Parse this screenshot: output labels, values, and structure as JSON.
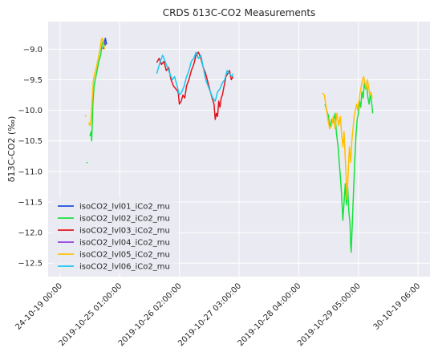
{
  "chart_data": {
    "type": "line",
    "title": "CRDS δ13C-CO2 Measurements",
    "xlabel": "",
    "ylabel": "δ13C-CO2 (‰)",
    "ylim": [
      -12.72,
      -8.55
    ],
    "xlim": [
      -0.2,
      6.2
    ],
    "grid": true,
    "legend_position": "lower-left",
    "y_ticks": [
      -9.0,
      -9.5,
      -10.0,
      -10.5,
      -11.0,
      -11.5,
      -12.0,
      -12.5
    ],
    "y_tick_labels": [
      "−9.0",
      "−9.5",
      "−10.0",
      "−10.5",
      "−11.0",
      "−11.5",
      "−12.0",
      "−12.5"
    ],
    "x_ticks": [
      0,
      1,
      2,
      3,
      4,
      5,
      6
    ],
    "x_tick_labels": [
      "24-10-19 00:00",
      "2019-10-25 01:00:00",
      "2019-10-26 02:00:00",
      "2019-10-27 03:00:00",
      "2019-10-28 04:00:00",
      "2019-10-29 05:00:00",
      "30-10-19 06:00"
    ],
    "series": [
      {
        "name": "isoCO2_lvl01_iCo2_mu",
        "color": "#1f4fd8",
        "segments": [
          [
            [
              0.72,
              -9.0
            ],
            [
              0.74,
              -8.9
            ],
            [
              0.76,
              -8.82
            ],
            [
              0.78,
              -8.92
            ]
          ]
        ]
      },
      {
        "name": "isoCO2_lvl02_iCo2_mu",
        "color": "#17e33c",
        "segments": [
          [
            [
              0.44,
              -10.85
            ],
            [
              0.46,
              -10.86
            ]
          ],
          [
            [
              0.5,
              -10.42
            ],
            [
              0.52,
              -10.35
            ],
            [
              0.53,
              -10.5
            ],
            [
              0.55,
              -9.9
            ],
            [
              0.57,
              -9.6
            ],
            [
              0.6,
              -9.45
            ],
            [
              0.62,
              -9.35
            ],
            [
              0.65,
              -9.2
            ],
            [
              0.68,
              -9.1
            ],
            [
              0.7,
              -8.95
            ],
            [
              0.72,
              -8.85
            ],
            [
              0.74,
              -8.9
            ],
            [
              0.76,
              -8.95
            ]
          ],
          [
            [
              4.44,
              -9.9
            ],
            [
              4.47,
              -10.0
            ],
            [
              4.5,
              -10.1
            ],
            [
              4.52,
              -10.3
            ],
            [
              4.55,
              -10.15
            ],
            [
              4.58,
              -10.2
            ],
            [
              4.61,
              -10.05
            ],
            [
              4.63,
              -10.35
            ],
            [
              4.66,
              -10.6
            ],
            [
              4.68,
              -10.85
            ],
            [
              4.7,
              -11.1
            ],
            [
              4.72,
              -11.4
            ],
            [
              4.74,
              -11.8
            ],
            [
              4.76,
              -11.5
            ],
            [
              4.78,
              -11.2
            ],
            [
              4.8,
              -11.55
            ],
            [
              4.82,
              -11.25
            ],
            [
              4.84,
              -11.65
            ],
            [
              4.86,
              -11.85
            ],
            [
              4.87,
              -12.2
            ],
            [
              4.88,
              -12.32
            ],
            [
              4.9,
              -11.8
            ],
            [
              4.92,
              -11.3
            ],
            [
              4.94,
              -10.8
            ],
            [
              4.96,
              -10.4
            ],
            [
              4.98,
              -10.15
            ],
            [
              5.0,
              -10.05
            ],
            [
              5.02,
              -9.85
            ],
            [
              5.04,
              -9.95
            ],
            [
              5.06,
              -9.7
            ],
            [
              5.08,
              -9.8
            ],
            [
              5.1,
              -9.55
            ],
            [
              5.12,
              -9.65
            ],
            [
              5.14,
              -9.6
            ],
            [
              5.16,
              -9.8
            ],
            [
              5.18,
              -9.9
            ],
            [
              5.2,
              -9.75
            ],
            [
              5.22,
              -9.85
            ],
            [
              5.24,
              -10.05
            ]
          ]
        ]
      },
      {
        "name": "isoCO2_lvl03_iCo2_mu",
        "color": "#e3121b",
        "segments": [
          [
            [
              1.62,
              -9.22
            ],
            [
              1.66,
              -9.15
            ],
            [
              1.7,
              -9.25
            ],
            [
              1.74,
              -9.2
            ],
            [
              1.78,
              -9.35
            ],
            [
              1.82,
              -9.3
            ],
            [
              1.86,
              -9.5
            ],
            [
              1.9,
              -9.6
            ],
            [
              1.94,
              -9.65
            ],
            [
              1.98,
              -9.7
            ],
            [
              2.0,
              -9.9
            ],
            [
              2.03,
              -9.85
            ],
            [
              2.06,
              -9.75
            ],
            [
              2.09,
              -9.8
            ],
            [
              2.12,
              -9.6
            ],
            [
              2.16,
              -9.5
            ],
            [
              2.2,
              -9.35
            ],
            [
              2.24,
              -9.25
            ],
            [
              2.28,
              -9.1
            ],
            [
              2.32,
              -9.05
            ],
            [
              2.36,
              -9.15
            ],
            [
              2.4,
              -9.3
            ],
            [
              2.44,
              -9.4
            ],
            [
              2.48,
              -9.55
            ],
            [
              2.52,
              -9.7
            ],
            [
              2.55,
              -9.8
            ],
            [
              2.58,
              -9.9
            ],
            [
              2.6,
              -10.15
            ],
            [
              2.62,
              -10.05
            ],
            [
              2.64,
              -10.1
            ],
            [
              2.66,
              -9.85
            ],
            [
              2.68,
              -9.95
            ],
            [
              2.7,
              -9.8
            ],
            [
              2.72,
              -9.75
            ],
            [
              2.75,
              -9.6
            ],
            [
              2.78,
              -9.45
            ],
            [
              2.81,
              -9.4
            ],
            [
              2.84,
              -9.35
            ],
            [
              2.87,
              -9.5
            ],
            [
              2.9,
              -9.45
            ]
          ]
        ]
      },
      {
        "name": "isoCO2_lvl04_iCo2_mu",
        "color": "#8e3fe0",
        "segments": [
          [
            [
              0.73,
              -8.95
            ],
            [
              0.75,
              -8.88
            ],
            [
              0.77,
              -8.93
            ]
          ]
        ]
      },
      {
        "name": "isoCO2_lvl05_iCo2_mu",
        "color": "#ffc000",
        "segments": [
          [
            [
              0.42,
              -10.08
            ],
            [
              0.44,
              -10.1
            ]
          ],
          [
            [
              0.48,
              -10.2
            ],
            [
              0.5,
              -10.25
            ],
            [
              0.52,
              -10.15
            ],
            [
              0.54,
              -9.8
            ],
            [
              0.56,
              -9.5
            ],
            [
              0.58,
              -9.4
            ],
            [
              0.61,
              -9.3
            ],
            [
              0.64,
              -9.15
            ],
            [
              0.67,
              -9.0
            ],
            [
              0.69,
              -8.85
            ],
            [
              0.71,
              -8.82
            ],
            [
              0.73,
              -8.95
            ],
            [
              0.75,
              -9.0
            ]
          ],
          [
            [
              4.4,
              -9.72
            ],
            [
              4.43,
              -9.75
            ],
            [
              4.46,
              -9.95
            ],
            [
              4.49,
              -10.15
            ],
            [
              4.52,
              -10.3
            ],
            [
              4.55,
              -10.25
            ],
            [
              4.58,
              -10.1
            ],
            [
              4.61,
              -10.3
            ],
            [
              4.64,
              -10.05
            ],
            [
              4.67,
              -10.25
            ],
            [
              4.7,
              -10.1
            ],
            [
              4.72,
              -10.4
            ],
            [
              4.74,
              -10.6
            ],
            [
              4.76,
              -10.35
            ],
            [
              4.78,
              -10.8
            ],
            [
              4.8,
              -11.2
            ],
            [
              4.81,
              -11.45
            ],
            [
              4.83,
              -11.0
            ],
            [
              4.85,
              -10.6
            ],
            [
              4.87,
              -10.85
            ],
            [
              4.89,
              -10.5
            ],
            [
              4.91,
              -10.3
            ],
            [
              4.93,
              -10.1
            ],
            [
              4.95,
              -10.0
            ],
            [
              4.97,
              -9.9
            ],
            [
              4.99,
              -10.0
            ],
            [
              5.01,
              -9.85
            ],
            [
              5.03,
              -9.7
            ],
            [
              5.05,
              -9.6
            ],
            [
              5.07,
              -9.5
            ],
            [
              5.09,
              -9.45
            ],
            [
              5.11,
              -9.55
            ],
            [
              5.13,
              -9.65
            ],
            [
              5.15,
              -9.5
            ],
            [
              5.17,
              -9.6
            ],
            [
              5.19,
              -9.75
            ],
            [
              5.21,
              -9.7
            ],
            [
              5.23,
              -9.8
            ]
          ]
        ]
      },
      {
        "name": "isoCO2_lvl06_iCo2_mu",
        "color": "#1ac8ee",
        "segments": [
          [
            [
              1.62,
              -9.4
            ],
            [
              1.65,
              -9.3
            ],
            [
              1.68,
              -9.2
            ],
            [
              1.72,
              -9.1
            ],
            [
              1.76,
              -9.2
            ],
            [
              1.8,
              -9.3
            ],
            [
              1.84,
              -9.4
            ],
            [
              1.88,
              -9.5
            ],
            [
              1.92,
              -9.45
            ],
            [
              1.96,
              -9.6
            ],
            [
              2.0,
              -9.75
            ],
            [
              2.04,
              -9.7
            ],
            [
              2.08,
              -9.6
            ],
            [
              2.12,
              -9.45
            ],
            [
              2.16,
              -9.35
            ],
            [
              2.2,
              -9.2
            ],
            [
              2.24,
              -9.15
            ],
            [
              2.28,
              -9.05
            ],
            [
              2.32,
              -9.15
            ],
            [
              2.36,
              -9.1
            ],
            [
              2.4,
              -9.3
            ],
            [
              2.44,
              -9.5
            ],
            [
              2.48,
              -9.6
            ],
            [
              2.52,
              -9.7
            ],
            [
              2.56,
              -9.8
            ],
            [
              2.6,
              -9.85
            ],
            [
              2.64,
              -9.7
            ],
            [
              2.68,
              -9.65
            ],
            [
              2.72,
              -9.55
            ],
            [
              2.76,
              -9.5
            ],
            [
              2.8,
              -9.35
            ],
            [
              2.84,
              -9.4
            ],
            [
              2.88,
              -9.45
            ],
            [
              2.9,
              -9.4
            ]
          ]
        ]
      }
    ]
  }
}
